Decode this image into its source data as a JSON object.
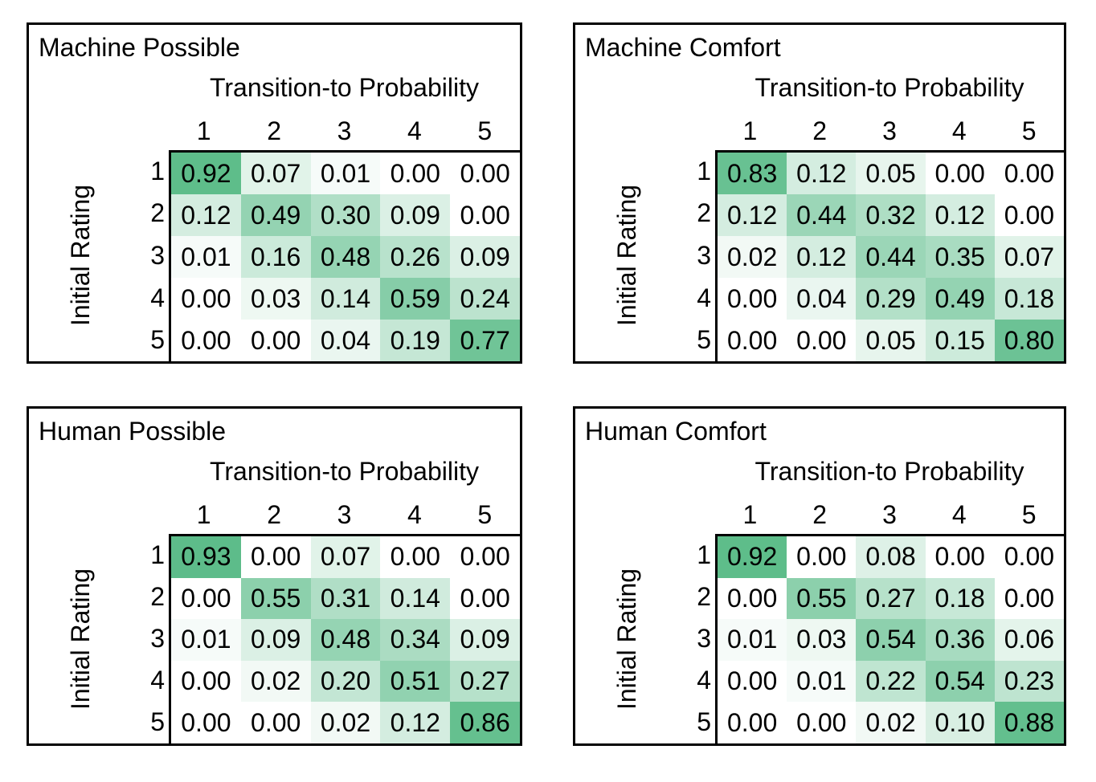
{
  "figure": {
    "background": "#ffffff",
    "panel_border_color": "#000000",
    "text_color": "#000000"
  },
  "heatmap_style": {
    "min_color": "#ffffff",
    "max_color": "#55b984",
    "gamma": 0.65
  },
  "axis": {
    "col_title": "Transition-to Probability",
    "row_title": "Initial Rating",
    "ticks": [
      "1",
      "2",
      "3",
      "4",
      "5"
    ]
  },
  "chart_data": [
    {
      "type": "heatmap",
      "title": "Machine Possible",
      "xlabel": "Transition-to Probability",
      "ylabel": "Initial Rating",
      "x_ticks": [
        "1",
        "2",
        "3",
        "4",
        "5"
      ],
      "y_ticks": [
        "1",
        "2",
        "3",
        "4",
        "5"
      ],
      "value_range": [
        0,
        1
      ],
      "values": [
        [
          0.92,
          0.07,
          0.01,
          0.0,
          0.0
        ],
        [
          0.12,
          0.49,
          0.3,
          0.09,
          0.0
        ],
        [
          0.01,
          0.16,
          0.48,
          0.26,
          0.09
        ],
        [
          0.0,
          0.03,
          0.14,
          0.59,
          0.24
        ],
        [
          0.0,
          0.0,
          0.04,
          0.19,
          0.77
        ]
      ]
    },
    {
      "type": "heatmap",
      "title": "Machine Comfort",
      "xlabel": "Transition-to Probability",
      "ylabel": "Initial Rating",
      "x_ticks": [
        "1",
        "2",
        "3",
        "4",
        "5"
      ],
      "y_ticks": [
        "1",
        "2",
        "3",
        "4",
        "5"
      ],
      "value_range": [
        0,
        1
      ],
      "values": [
        [
          0.83,
          0.12,
          0.05,
          0.0,
          0.0
        ],
        [
          0.12,
          0.44,
          0.32,
          0.12,
          0.0
        ],
        [
          0.02,
          0.12,
          0.44,
          0.35,
          0.07
        ],
        [
          0.0,
          0.04,
          0.29,
          0.49,
          0.18
        ],
        [
          0.0,
          0.0,
          0.05,
          0.15,
          0.8
        ]
      ]
    },
    {
      "type": "heatmap",
      "title": "Human Possible",
      "xlabel": "Transition-to Probability",
      "ylabel": "Initial Rating",
      "x_ticks": [
        "1",
        "2",
        "3",
        "4",
        "5"
      ],
      "y_ticks": [
        "1",
        "2",
        "3",
        "4",
        "5"
      ],
      "value_range": [
        0,
        1
      ],
      "values": [
        [
          0.93,
          0.0,
          0.07,
          0.0,
          0.0
        ],
        [
          0.0,
          0.55,
          0.31,
          0.14,
          0.0
        ],
        [
          0.01,
          0.09,
          0.48,
          0.34,
          0.09
        ],
        [
          0.0,
          0.02,
          0.2,
          0.51,
          0.27
        ],
        [
          0.0,
          0.0,
          0.02,
          0.12,
          0.86
        ]
      ]
    },
    {
      "type": "heatmap",
      "title": "Human Comfort",
      "xlabel": "Transition-to Probability",
      "ylabel": "Initial Rating",
      "x_ticks": [
        "1",
        "2",
        "3",
        "4",
        "5"
      ],
      "y_ticks": [
        "1",
        "2",
        "3",
        "4",
        "5"
      ],
      "value_range": [
        0,
        1
      ],
      "values": [
        [
          0.92,
          0.0,
          0.08,
          0.0,
          0.0
        ],
        [
          0.0,
          0.55,
          0.27,
          0.18,
          0.0
        ],
        [
          0.01,
          0.03,
          0.54,
          0.36,
          0.06
        ],
        [
          0.0,
          0.01,
          0.22,
          0.54,
          0.23
        ],
        [
          0.0,
          0.0,
          0.02,
          0.1,
          0.88
        ]
      ]
    }
  ]
}
